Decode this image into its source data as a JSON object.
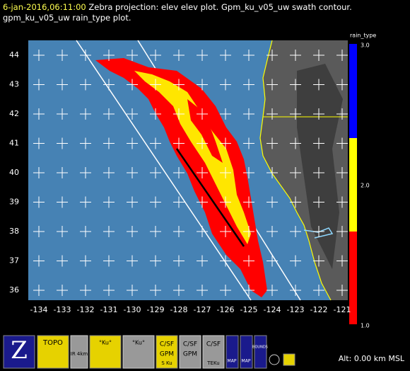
{
  "header": {
    "time": "6-jan-2016,06:11:00",
    "line1": "Zebra projection: elev elev  plot.  Gpm_ku_v05_uw swath contour.",
    "line2": "gpm_ku_v05_uw rain_type  plot."
  },
  "map": {
    "lon_labels": [
      -134,
      -133,
      -132,
      -131,
      -130,
      -129,
      -128,
      -127,
      -126,
      -125,
      -124,
      -123,
      -122,
      -121
    ],
    "lat_labels": [
      44,
      43,
      42,
      41,
      40,
      39,
      38,
      37,
      36
    ]
  },
  "colorbar": {
    "title": "rain_type",
    "labels": [
      "3.0",
      "2.0",
      "1.0"
    ]
  },
  "icons": [
    "Z",
    "TOPO",
    "IR 4km",
    "°Ku°",
    "C/SF",
    "GPM",
    "S Ku",
    "TEKu",
    "MAP",
    "BOUNDS"
  ],
  "status": {
    "altitude": "Alt: 0.00 km MSL"
  }
}
